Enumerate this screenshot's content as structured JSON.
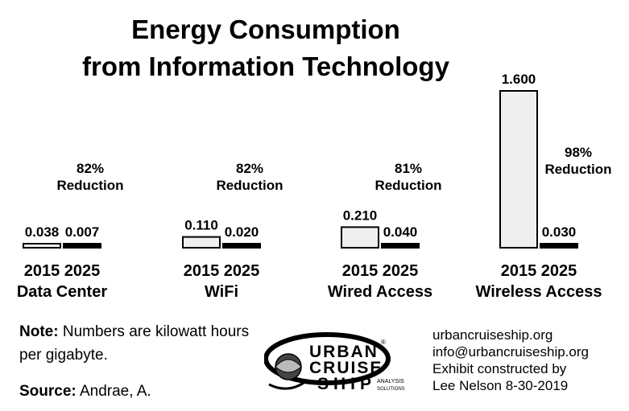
{
  "title_line1": "Energy Consumption",
  "title_line2": "from Information Technology",
  "chart_data": {
    "type": "bar",
    "unit": "kilowatt hours per gigabyte",
    "groups": [
      {
        "name": "Data Center",
        "reduction": "82%",
        "reduction_label": "Reduction",
        "bars": [
          {
            "year": "2015",
            "value": 0.038,
            "label": "0.038"
          },
          {
            "year": "2025",
            "value": 0.007,
            "label": "0.007"
          }
        ]
      },
      {
        "name": "WiFi",
        "reduction": "82%",
        "reduction_label": "Reduction",
        "bars": [
          {
            "year": "2015",
            "value": 0.11,
            "label": "0.110"
          },
          {
            "year": "2025",
            "value": 0.02,
            "label": "0.020"
          }
        ]
      },
      {
        "name": "Wired Access",
        "reduction": "81%",
        "reduction_label": "Reduction",
        "bars": [
          {
            "year": "2015",
            "value": 0.21,
            "label": "0.210"
          },
          {
            "year": "2025",
            "value": 0.04,
            "label": "0.040"
          }
        ]
      },
      {
        "name": "Wireless Access",
        "reduction": "98%",
        "reduction_label": "Reduction",
        "bars": [
          {
            "year": "2015",
            "value": 1.6,
            "label": "1.600"
          },
          {
            "year": "2025",
            "value": 0.03,
            "label": "0.030"
          }
        ]
      }
    ],
    "colors": {
      "bar_2015_fill": "#efefef",
      "bar_2025_fill": "#000000",
      "bar_stroke": "#000000"
    }
  },
  "note": {
    "label": "Note:",
    "text": "Numbers are kilowatt hours per gigabyte."
  },
  "source": {
    "label": "Source:",
    "text": "Andrae, A."
  },
  "logo": {
    "line1": "URBAN",
    "line2": "CRUISE",
    "line3": "SHIP",
    "sub1": "ANALYSIS",
    "sub2": "SOLUTIONS",
    "mark": "®"
  },
  "contact": {
    "website": "urbancruiseship.org",
    "email": "info@urbancruiseship.org",
    "line3": "Exhibit constructed by",
    "line4": "Lee Nelson 8-30-2019"
  }
}
